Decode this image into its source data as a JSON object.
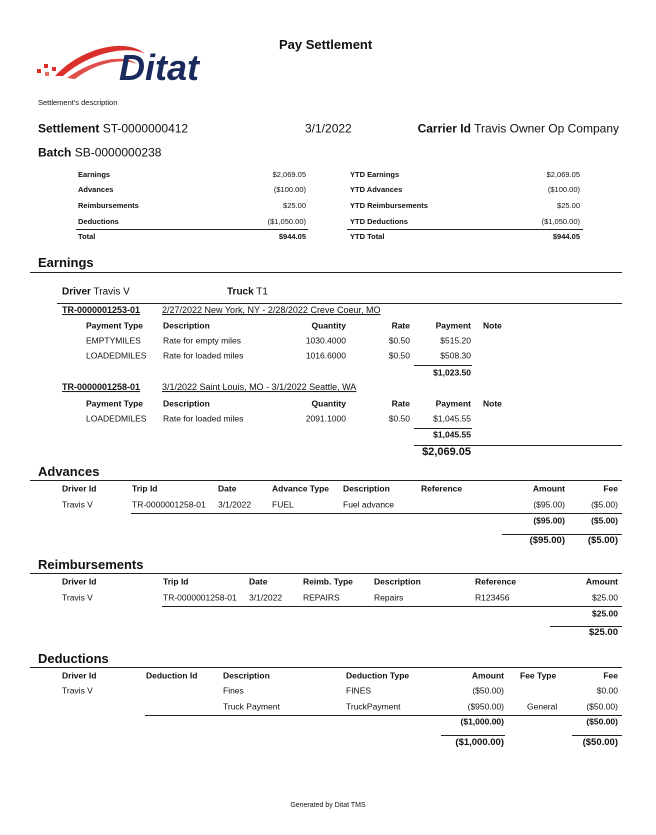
{
  "logo": {
    "text": "Ditat",
    "colors": {
      "swoosh": "#d9302b",
      "text": "#1b2a5c"
    }
  },
  "title": "Pay Settlement",
  "description": "Settlement's description",
  "settlement": {
    "label": "Settlement",
    "value": "ST-0000000412",
    "date": "3/1/2022",
    "carrier_label": "Carrier Id",
    "carrier_value": "Travis Owner Op Company",
    "batch_label": "Batch",
    "batch_value": "SB-0000000238"
  },
  "summary": {
    "current": [
      {
        "label": "Earnings",
        "value": "$2,069.05"
      },
      {
        "label": "Advances",
        "value": "($100.00)"
      },
      {
        "label": "Reimbursements",
        "value": "$25.00"
      },
      {
        "label": "Deductions",
        "value": "($1,050.00)"
      },
      {
        "label": "Total",
        "value": "$944.05"
      }
    ],
    "ytd": [
      {
        "label": "YTD Earnings",
        "value": "$2,069.05"
      },
      {
        "label": "YTD Advances",
        "value": "($100.00)"
      },
      {
        "label": "YTD Reimbursements",
        "value": "$25.00"
      },
      {
        "label": "YTD Deductions",
        "value": "($1,050.00)"
      },
      {
        "label": "YTD Total",
        "value": "$944.05"
      }
    ]
  },
  "earnings": {
    "title": "Earnings",
    "driver_label": "Driver",
    "driver": "Travis V",
    "truck_label": "Truck",
    "truck": "T1",
    "columns": [
      "Payment Type",
      "Description",
      "Quantity",
      "Rate",
      "Payment",
      "Note"
    ],
    "trips": [
      {
        "id": "TR-0000001253-01",
        "route": "2/27/2022 New York, NY - 2/28/2022 Creve Coeur, MO",
        "rows": [
          {
            "type": "EMPTYMILES",
            "description": "Rate for empty miles",
            "quantity": "1030.4000",
            "rate": "$0.50",
            "payment": "$515.20"
          },
          {
            "type": "LOADEDMILES",
            "description": "Rate for loaded miles",
            "quantity": "1016.6000",
            "rate": "$0.50",
            "payment": "$508.30"
          }
        ],
        "subtotal": "$1,023.50"
      },
      {
        "id": "TR-0000001258-01",
        "route": "3/1/2022 Saint Louis, MO - 3/1/2022 Seattle, WA",
        "rows": [
          {
            "type": "LOADEDMILES",
            "description": "Rate for loaded miles",
            "quantity": "2091.1000",
            "rate": "$0.50",
            "payment": "$1,045.55"
          }
        ],
        "subtotal": "$1,045.55"
      }
    ],
    "total": "$2,069.05"
  },
  "advances": {
    "title": "Advances",
    "columns": [
      "Driver Id",
      "Trip Id",
      "Date",
      "Advance Type",
      "Description",
      "Reference",
      "Amount",
      "Fee"
    ],
    "rows": [
      {
        "driver": "Travis V",
        "trip": "TR-0000001258-01",
        "date": "3/1/2022",
        "type": "FUEL",
        "description": "Fuel advance",
        "reference": "",
        "amount": "($95.00)",
        "fee": "($5.00)"
      }
    ],
    "subtotal_amount": "($95.00)",
    "subtotal_fee": "($5.00)",
    "total_amount": "($95.00)",
    "total_fee": "($5.00)"
  },
  "reimbursements": {
    "title": "Reimbursements",
    "columns": [
      "Driver Id",
      "Trip Id",
      "Date",
      "Reimb. Type",
      "Description",
      "Reference",
      "Amount"
    ],
    "rows": [
      {
        "driver": "Travis V",
        "trip": "TR-0000001258-01",
        "date": "3/1/2022",
        "type": "REPAIRS",
        "description": "Repairs",
        "reference": "R123456",
        "amount": "$25.00"
      }
    ],
    "subtotal": "$25.00",
    "total": "$25.00"
  },
  "deductions": {
    "title": "Deductions",
    "columns": [
      "Driver Id",
      "Deduction Id",
      "Description",
      "Deduction Type",
      "Amount",
      "Fee Type",
      "Fee"
    ],
    "rows": [
      {
        "driver": "Travis V",
        "id": "",
        "description": "Fines",
        "type": "FINES",
        "amount": "($50.00)",
        "fee_type": "",
        "fee": "$0.00"
      },
      {
        "driver": "",
        "id": "",
        "description": "Truck Payment",
        "type": "TruckPayment",
        "amount": "($950.00)",
        "fee_type": "General",
        "fee": "($50.00)"
      }
    ],
    "subtotal_amount": "($1,000.00)",
    "subtotal_fee": "($50.00)",
    "total_amount": "($1,000.00)",
    "total_fee": "($50.00)"
  },
  "footer": "Generated by Ditat TMS"
}
